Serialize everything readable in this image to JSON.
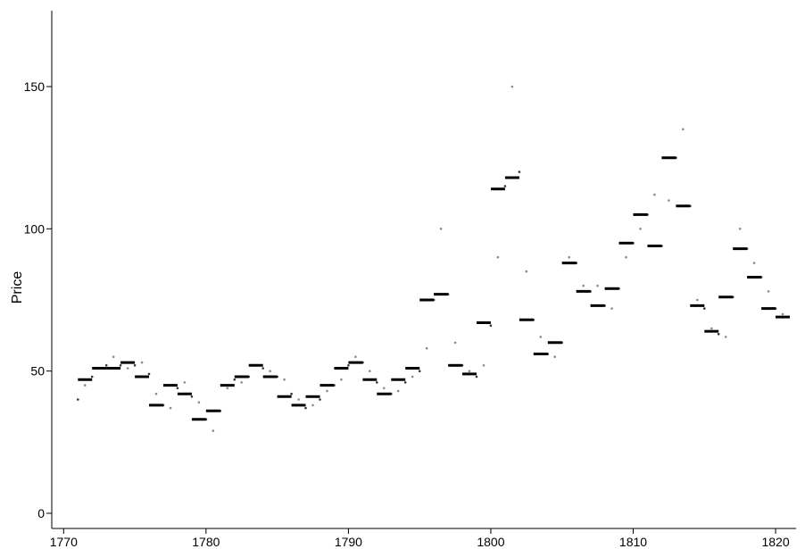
{
  "chart_data": {
    "type": "scatter",
    "title": "",
    "xlabel": "",
    "ylabel": "Price",
    "xlim": [
      1770,
      1821
    ],
    "ylim": [
      0,
      175
    ],
    "x_ticks": [
      1770,
      1780,
      1790,
      1800,
      1810,
      1820
    ],
    "y_ticks": [
      0,
      50,
      100,
      150
    ],
    "grid": false,
    "legend": "none",
    "colors": {
      "points_dark": "#333333",
      "points_light": "#8a8a8a",
      "annual_mean": "#000000"
    },
    "series": [
      {
        "type": "scatter",
        "values": [
          [
            1771.0,
            40
          ],
          [
            1771.5,
            45
          ],
          [
            1772.0,
            48
          ],
          [
            1772.5,
            51
          ],
          [
            1773.0,
            52
          ],
          [
            1773.5,
            55
          ],
          [
            1774.0,
            52
          ],
          [
            1774.5,
            51
          ],
          [
            1775.0,
            52
          ],
          [
            1775.5,
            53
          ],
          [
            1776.0,
            49
          ],
          [
            1776.5,
            42
          ],
          [
            1777.0,
            38
          ],
          [
            1777.5,
            37
          ],
          [
            1778.0,
            44
          ],
          [
            1778.5,
            46
          ],
          [
            1779.0,
            41
          ],
          [
            1779.5,
            39
          ],
          [
            1780.0,
            33
          ],
          [
            1780.5,
            29
          ],
          [
            1781.0,
            36
          ],
          [
            1781.5,
            44
          ],
          [
            1782.0,
            47
          ],
          [
            1782.5,
            46
          ],
          [
            1783.0,
            48
          ],
          [
            1783.5,
            52
          ],
          [
            1784.0,
            51
          ],
          [
            1784.5,
            50
          ],
          [
            1785.0,
            48
          ],
          [
            1785.5,
            47
          ],
          [
            1786.0,
            42
          ],
          [
            1786.5,
            40
          ],
          [
            1787.0,
            37
          ],
          [
            1787.5,
            38
          ],
          [
            1788.0,
            40
          ],
          [
            1788.5,
            43
          ],
          [
            1789.0,
            45
          ],
          [
            1789.5,
            47
          ],
          [
            1790.0,
            52
          ],
          [
            1790.5,
            55
          ],
          [
            1791.0,
            53
          ],
          [
            1791.5,
            50
          ],
          [
            1792.0,
            46
          ],
          [
            1792.5,
            44
          ],
          [
            1793.0,
            42
          ],
          [
            1793.5,
            43
          ],
          [
            1794.0,
            46
          ],
          [
            1794.5,
            48
          ],
          [
            1795.0,
            50
          ],
          [
            1795.5,
            58
          ],
          [
            1796.0,
            75
          ],
          [
            1796.5,
            100
          ],
          [
            1797.0,
            77
          ],
          [
            1797.5,
            60
          ],
          [
            1798.0,
            52
          ],
          [
            1798.5,
            50
          ],
          [
            1799.0,
            48
          ],
          [
            1799.5,
            52
          ],
          [
            1800.0,
            66
          ],
          [
            1800.5,
            90
          ],
          [
            1801.0,
            115
          ],
          [
            1801.5,
            150
          ],
          [
            1802.0,
            120
          ],
          [
            1802.5,
            85
          ],
          [
            1803.0,
            68
          ],
          [
            1803.5,
            62
          ],
          [
            1804.0,
            56
          ],
          [
            1804.5,
            55
          ],
          [
            1805.0,
            60
          ],
          [
            1805.5,
            90
          ],
          [
            1806.0,
            88
          ],
          [
            1806.5,
            80
          ],
          [
            1807.0,
            78
          ],
          [
            1807.5,
            80
          ],
          [
            1808.0,
            73
          ],
          [
            1808.5,
            72
          ],
          [
            1809.0,
            79
          ],
          [
            1809.5,
            90
          ],
          [
            1810.0,
            95
          ],
          [
            1810.5,
            100
          ],
          [
            1811.0,
            105
          ],
          [
            1811.5,
            112
          ],
          [
            1812.0,
            94
          ],
          [
            1812.5,
            110
          ],
          [
            1813.0,
            125
          ],
          [
            1813.5,
            135
          ],
          [
            1814.0,
            108
          ],
          [
            1814.5,
            75
          ],
          [
            1815.0,
            72
          ],
          [
            1815.5,
            65
          ],
          [
            1816.0,
            63
          ],
          [
            1816.5,
            62
          ],
          [
            1817.0,
            76
          ],
          [
            1817.5,
            100
          ],
          [
            1818.0,
            93
          ],
          [
            1818.5,
            88
          ],
          [
            1819.0,
            83
          ],
          [
            1819.5,
            78
          ],
          [
            1820.0,
            72
          ],
          [
            1820.5,
            70
          ]
        ]
      },
      {
        "type": "step",
        "values": [
          [
            1771.5,
            47
          ],
          [
            1772.5,
            51
          ],
          [
            1773.5,
            51
          ],
          [
            1774.5,
            53
          ],
          [
            1775.5,
            48
          ],
          [
            1776.5,
            38
          ],
          [
            1777.5,
            45
          ],
          [
            1778.5,
            42
          ],
          [
            1779.5,
            33
          ],
          [
            1780.5,
            36
          ],
          [
            1781.5,
            45
          ],
          [
            1782.5,
            48
          ],
          [
            1783.5,
            52
          ],
          [
            1784.5,
            48
          ],
          [
            1785.5,
            41
          ],
          [
            1786.5,
            38
          ],
          [
            1787.5,
            41
          ],
          [
            1788.5,
            45
          ],
          [
            1789.5,
            51
          ],
          [
            1790.5,
            53
          ],
          [
            1791.5,
            47
          ],
          [
            1792.5,
            42
          ],
          [
            1793.5,
            47
          ],
          [
            1794.5,
            51
          ],
          [
            1795.5,
            75
          ],
          [
            1796.5,
            77
          ],
          [
            1797.5,
            52
          ],
          [
            1798.5,
            49
          ],
          [
            1799.5,
            67
          ],
          [
            1800.5,
            114
          ],
          [
            1801.5,
            118
          ],
          [
            1802.5,
            68
          ],
          [
            1803.5,
            56
          ],
          [
            1804.5,
            60
          ],
          [
            1805.5,
            88
          ],
          [
            1806.5,
            78
          ],
          [
            1807.5,
            73
          ],
          [
            1808.5,
            79
          ],
          [
            1809.5,
            95
          ],
          [
            1810.5,
            105
          ],
          [
            1811.5,
            94
          ],
          [
            1812.5,
            125
          ],
          [
            1813.5,
            108
          ],
          [
            1814.5,
            73
          ],
          [
            1815.5,
            64
          ],
          [
            1816.5,
            76
          ],
          [
            1817.5,
            93
          ],
          [
            1818.5,
            83
          ],
          [
            1819.5,
            72
          ],
          [
            1820.5,
            69
          ]
        ]
      }
    ]
  }
}
